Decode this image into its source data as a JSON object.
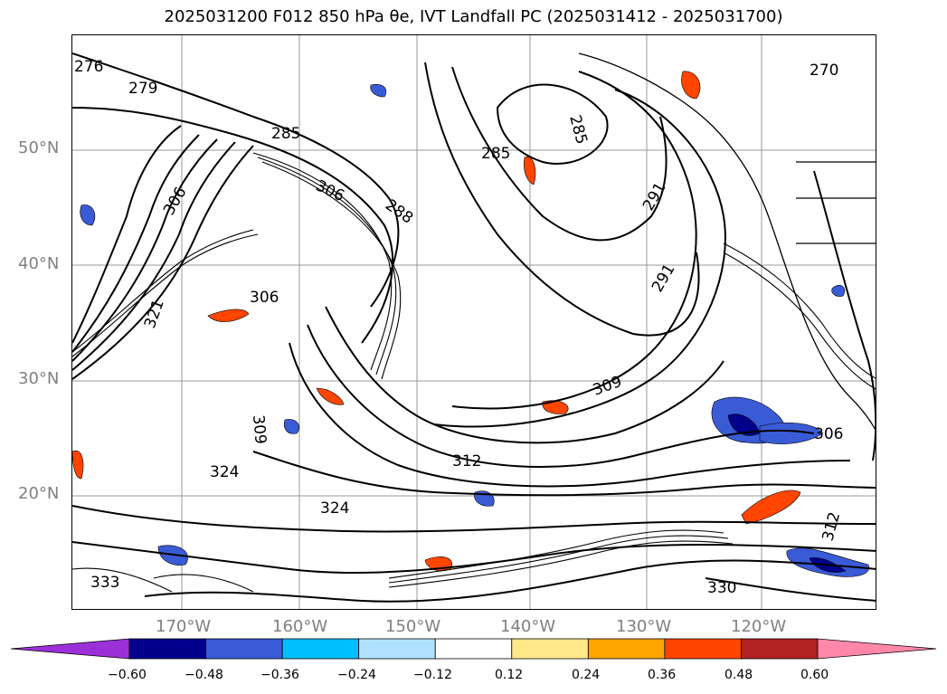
{
  "title": "2025031200 F012 850 hPa θe, IVT Landfall PC (2025031412 - 2025031700)",
  "lat_labels": [
    "50°N",
    "40°N",
    "30°N",
    "20°N"
  ],
  "lon_labels": [
    "170°W",
    "160°W",
    "150°W",
    "140°W",
    "130°W",
    "120°W"
  ],
  "contour_labels": [
    "276",
    "279",
    "270",
    "285",
    "285",
    "285",
    "288",
    "291",
    "291",
    "306",
    "306",
    "306",
    "309",
    "309",
    "312",
    "312",
    "321",
    "324",
    "324",
    "330",
    "333",
    "306"
  ],
  "colorbar": {
    "ticks": [
      "−0.60",
      "−0.48",
      "−0.36",
      "−0.24",
      "−0.12",
      "0.12",
      "0.24",
      "0.36",
      "0.48",
      "0.60"
    ],
    "colors": [
      "#9b30d9",
      "#00008b",
      "#3a5bd6",
      "#00bfff",
      "#b0e2ff",
      "#ffffff",
      "#ffe88a",
      "#ffa500",
      "#ff4500",
      "#b22222",
      "#ff88aa"
    ]
  }
}
